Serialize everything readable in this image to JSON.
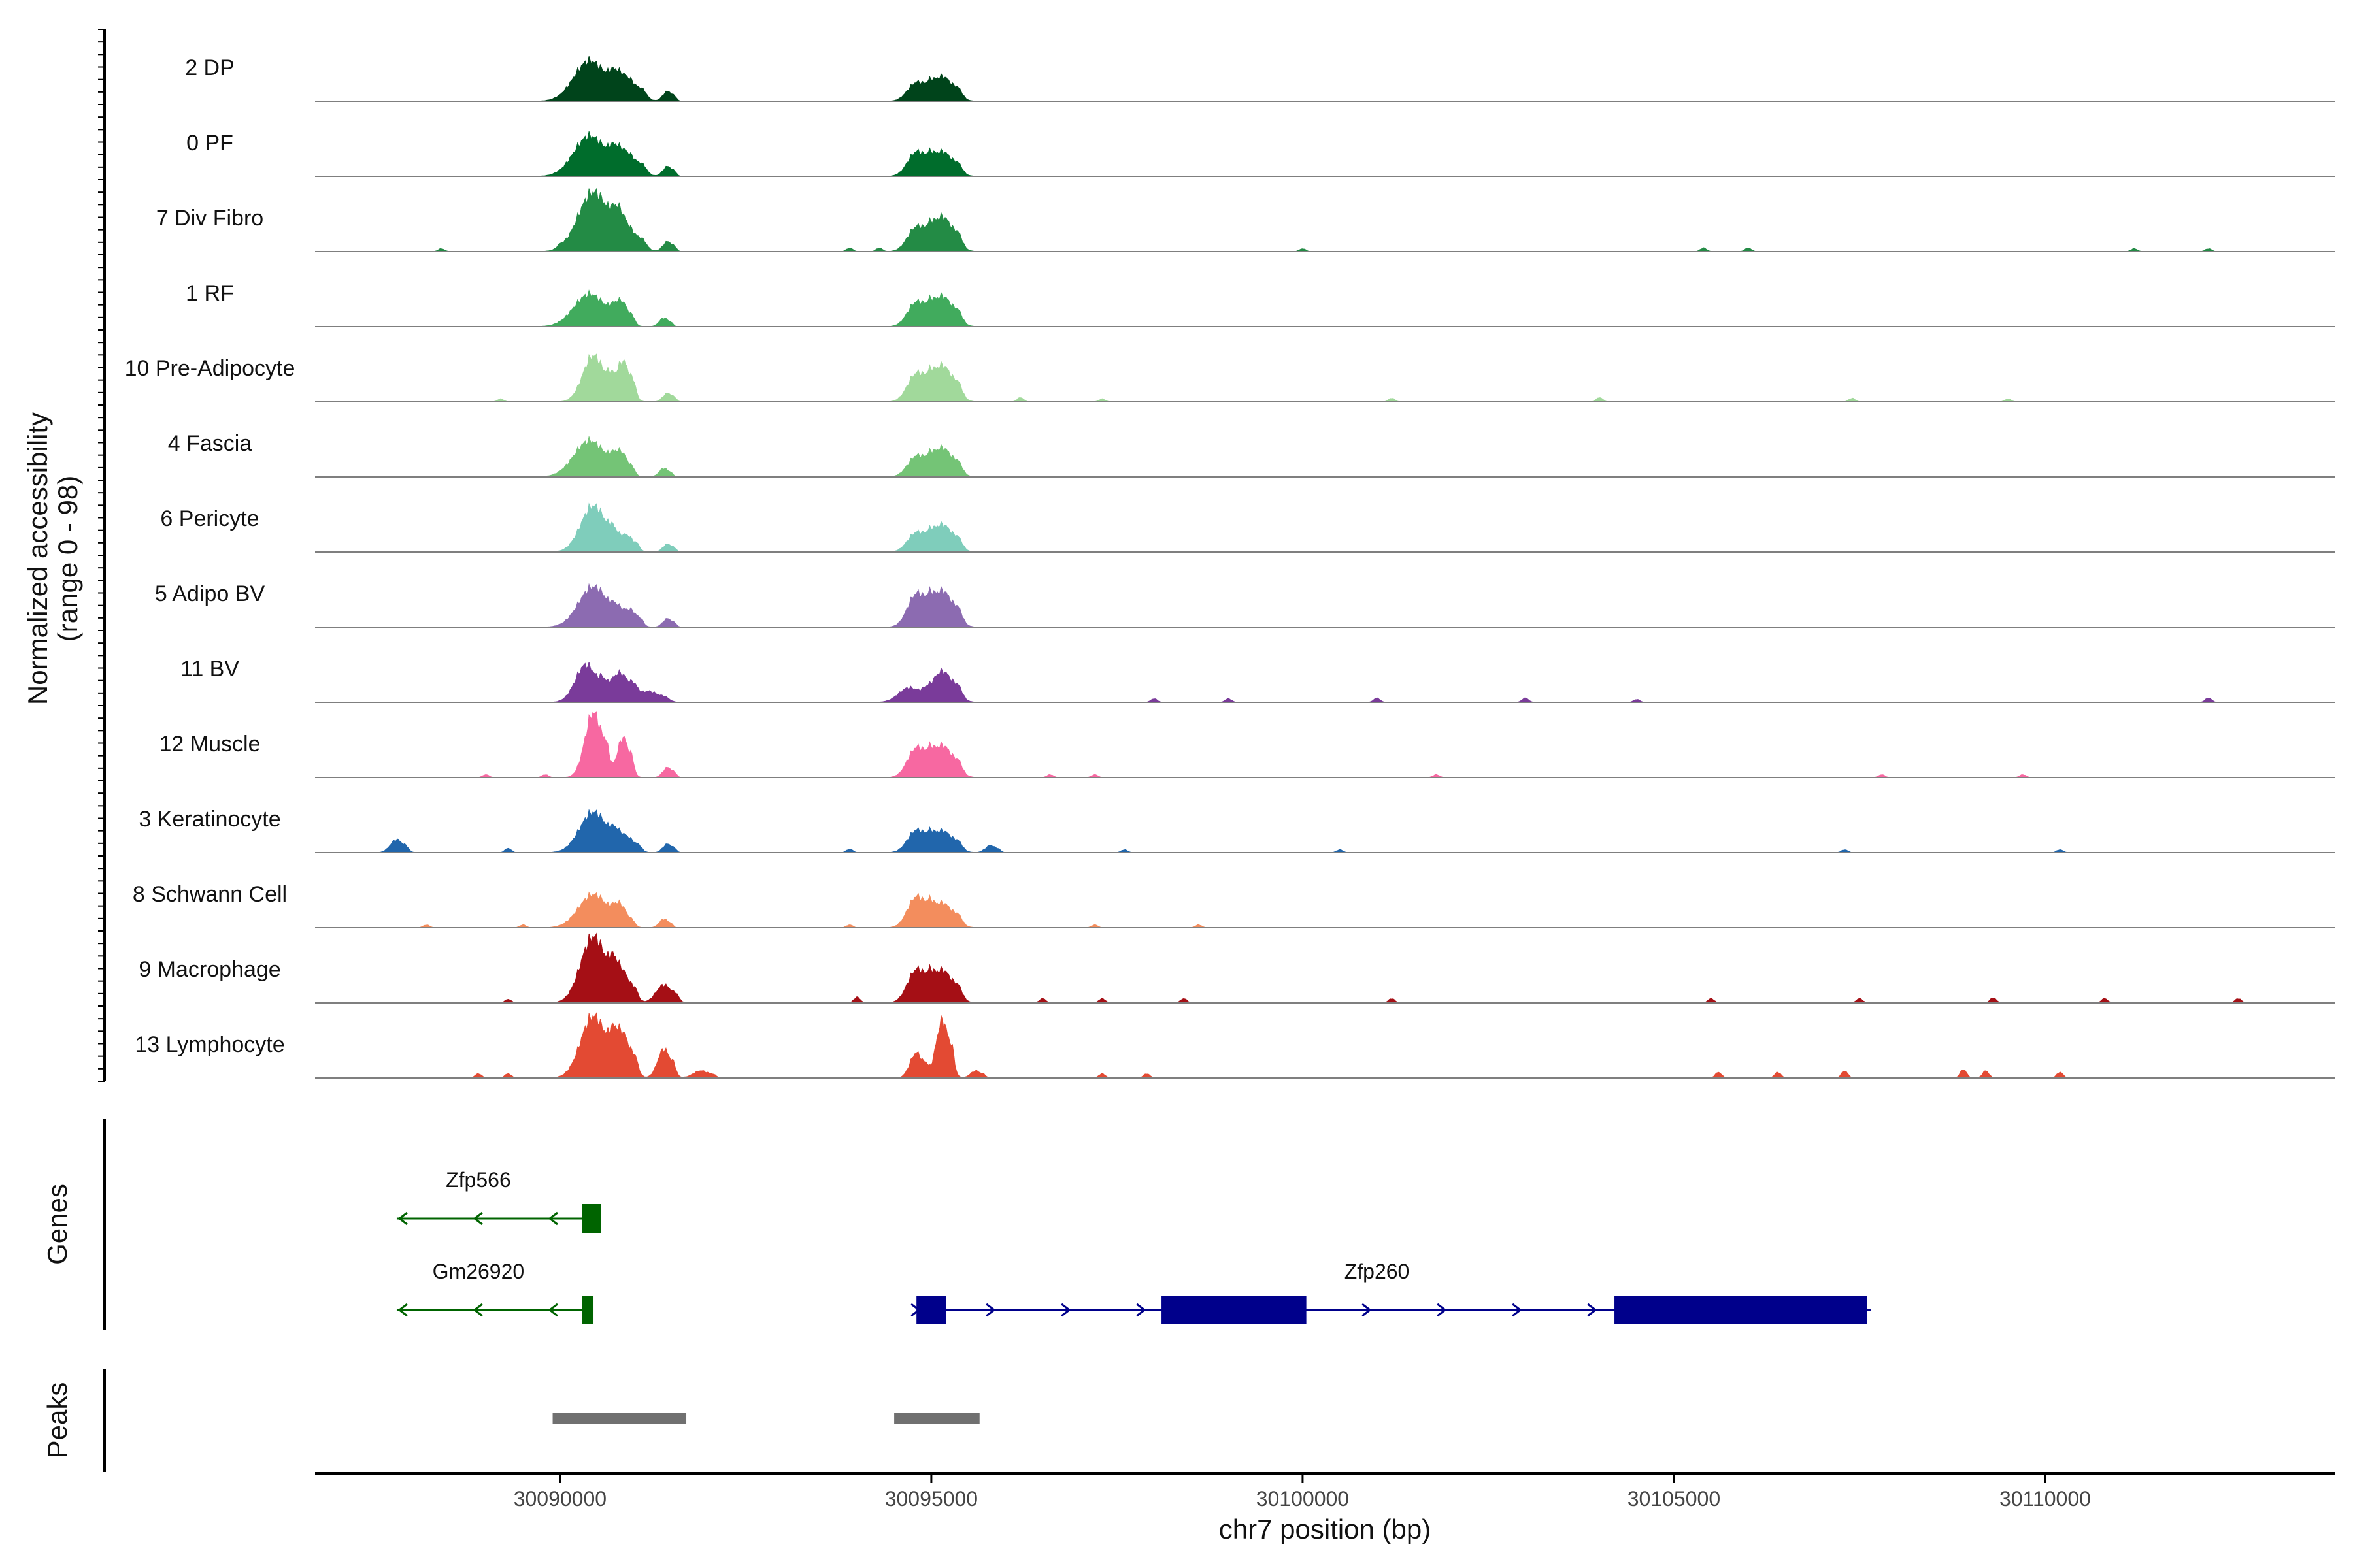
{
  "chart_data": {
    "type": "area",
    "title": "",
    "xlabel": "chr7 position (bp)",
    "ylabel": "Normalized accessibility",
    "ylabel_range": "(range 0 - 98)",
    "xlim": [
      30086700,
      30113900
    ],
    "ylim": [
      0,
      98
    ],
    "x_ticks": [
      30090000,
      30095000,
      30100000,
      30105000,
      30110000
    ],
    "x_tick_labels": [
      "30090000",
      "30095000",
      "30100000",
      "30105000",
      "30110000"
    ],
    "tracks": [
      {
        "name": "2 DP",
        "color": "#00441b",
        "peaks": [
          [
            30090400,
            56,
            300
          ],
          [
            30090900,
            30,
            200
          ],
          [
            30091450,
            14,
            90
          ],
          [
            30094800,
            25,
            170
          ],
          [
            30095150,
            34,
            200
          ]
        ],
        "noise": []
      },
      {
        "name": "0 PF",
        "color": "#006d2c",
        "peaks": [
          [
            30090400,
            56,
            300
          ],
          [
            30090900,
            30,
            200
          ],
          [
            30091450,
            14,
            90
          ],
          [
            30094800,
            33,
            170
          ],
          [
            30095150,
            34,
            200
          ]
        ],
        "noise": []
      },
      {
        "name": "7 Div Fibro",
        "color": "#238b45",
        "peaks": [
          [
            30090450,
            82,
            290
          ],
          [
            30090900,
            30,
            200
          ],
          [
            30091450,
            14,
            90
          ],
          [
            30094800,
            33,
            170
          ],
          [
            30095150,
            48,
            200
          ]
        ],
        "noise": [
          [
            30088400,
            4
          ],
          [
            30090000,
            4
          ],
          [
            30093900,
            5
          ],
          [
            30094300,
            5
          ],
          [
            30100000,
            4
          ],
          [
            30105400,
            5
          ],
          [
            30106000,
            5
          ],
          [
            30111200,
            4
          ],
          [
            30112200,
            4
          ]
        ]
      },
      {
        "name": "1 RF",
        "color": "#41ab5d",
        "peaks": [
          [
            30090400,
            45,
            300
          ],
          [
            30090850,
            26,
            120
          ],
          [
            30091400,
            12,
            90
          ],
          [
            30094800,
            33,
            170
          ],
          [
            30095150,
            42,
            200
          ]
        ],
        "noise": []
      },
      {
        "name": "10 Pre-Adipocyte",
        "color": "#a1d99b",
        "peaks": [
          [
            30090450,
            64,
            200
          ],
          [
            30090850,
            55,
            130
          ],
          [
            30091450,
            12,
            90
          ],
          [
            30094800,
            38,
            170
          ],
          [
            30095150,
            50,
            200
          ]
        ],
        "noise": [
          [
            30089200,
            4
          ],
          [
            30096200,
            6
          ],
          [
            30097300,
            4
          ],
          [
            30101200,
            5
          ],
          [
            30104000,
            6
          ],
          [
            30107400,
            5
          ],
          [
            30109500,
            4
          ]
        ]
      },
      {
        "name": "4 Fascia",
        "color": "#74c476",
        "peaks": [
          [
            30090400,
            50,
            300
          ],
          [
            30090850,
            24,
            120
          ],
          [
            30091400,
            12,
            90
          ],
          [
            30094800,
            28,
            170
          ],
          [
            30095150,
            40,
            200
          ]
        ],
        "noise": []
      },
      {
        "name": "6 Pericyte",
        "color": "#7fcdbb",
        "peaks": [
          [
            30090450,
            64,
            240
          ],
          [
            30090900,
            22,
            130
          ],
          [
            30091450,
            11,
            90
          ],
          [
            30094800,
            26,
            170
          ],
          [
            30095150,
            38,
            200
          ]
        ],
        "noise": []
      },
      {
        "name": "5 Adipo BV",
        "color": "#8c6bb1",
        "peaks": [
          [
            30090450,
            56,
            280
          ],
          [
            30090950,
            22,
            130
          ],
          [
            30091450,
            12,
            90
          ],
          [
            30094800,
            45,
            170
          ],
          [
            30095150,
            50,
            200
          ]
        ],
        "noise": []
      },
      {
        "name": "11 BV",
        "color": "#7a3b9a",
        "peaks": [
          [
            30090350,
            52,
            200
          ],
          [
            30090800,
            40,
            180
          ],
          [
            30091200,
            15,
            200
          ],
          [
            30094700,
            20,
            200
          ],
          [
            30095150,
            43,
            200
          ]
        ],
        "noise": [
          [
            30098000,
            5
          ],
          [
            30099000,
            5
          ],
          [
            30101000,
            6
          ],
          [
            30103000,
            6
          ],
          [
            30104500,
            4
          ],
          [
            30112200,
            6
          ]
        ]
      },
      {
        "name": "12 Muscle",
        "color": "#f768a1",
        "peaks": [
          [
            30090450,
            90,
            160
          ],
          [
            30090850,
            55,
            110
          ],
          [
            30091450,
            14,
            90
          ],
          [
            30094800,
            40,
            170
          ],
          [
            30095150,
            44,
            200
          ]
        ],
        "noise": [
          [
            30089000,
            4
          ],
          [
            30089800,
            4
          ],
          [
            30096600,
            4
          ],
          [
            30097200,
            4
          ],
          [
            30101800,
            4
          ],
          [
            30107800,
            4
          ],
          [
            30109700,
            4
          ]
        ]
      },
      {
        "name": "3 Keratinocyte",
        "color": "#2166ac",
        "peaks": [
          [
            30087800,
            18,
            120
          ],
          [
            30090450,
            56,
            260
          ],
          [
            30090900,
            20,
            150
          ],
          [
            30091450,
            12,
            90
          ],
          [
            30094800,
            30,
            170
          ],
          [
            30095150,
            30,
            200
          ],
          [
            30095800,
            10,
            100
          ]
        ],
        "noise": [
          [
            30089300,
            6
          ],
          [
            30093900,
            5
          ],
          [
            30097600,
            4
          ],
          [
            30100500,
            4
          ],
          [
            30107300,
            4
          ],
          [
            30110200,
            4
          ]
        ]
      },
      {
        "name": "8 Schwann Cell",
        "color": "#f38d5d",
        "peaks": [
          [
            30090450,
            46,
            280
          ],
          [
            30090850,
            18,
            120
          ],
          [
            30091400,
            12,
            90
          ],
          [
            30094800,
            42,
            170
          ],
          [
            30095150,
            34,
            200
          ]
        ],
        "noise": [
          [
            30088200,
            4
          ],
          [
            30089500,
            4
          ],
          [
            30093900,
            4
          ],
          [
            30097200,
            4
          ],
          [
            30098600,
            4
          ]
        ]
      },
      {
        "name": "9 Macrophage",
        "color": "#a50f15",
        "peaks": [
          [
            30090450,
            92,
            240
          ],
          [
            30090850,
            38,
            150
          ],
          [
            30091400,
            25,
            150
          ],
          [
            30094800,
            45,
            170
          ],
          [
            30095150,
            45,
            200
          ]
        ],
        "noise": [
          [
            30089300,
            5
          ],
          [
            30094000,
            8
          ],
          [
            30096500,
            6
          ],
          [
            30097300,
            6
          ],
          [
            30098400,
            6
          ],
          [
            30101200,
            6
          ],
          [
            30105500,
            6
          ],
          [
            30107500,
            6
          ],
          [
            30109300,
            7
          ],
          [
            30110800,
            6
          ],
          [
            30112600,
            6
          ]
        ]
      },
      {
        "name": "13 Lymphocyte",
        "color": "#e34a33",
        "peaks": [
          [
            30090450,
            86,
            240
          ],
          [
            30090850,
            56,
            150
          ],
          [
            30091400,
            40,
            120
          ],
          [
            30091900,
            10,
            150
          ],
          [
            30094800,
            35,
            120
          ],
          [
            30095150,
            80,
            120
          ],
          [
            30095600,
            10,
            100
          ]
        ],
        "noise": [
          [
            30088900,
            6
          ],
          [
            30089300,
            6
          ],
          [
            30097300,
            6
          ],
          [
            30097900,
            6
          ],
          [
            30105600,
            8
          ],
          [
            30106400,
            8
          ],
          [
            30107300,
            10
          ],
          [
            30108900,
            12
          ],
          [
            30109200,
            10
          ],
          [
            30110200,
            8
          ]
        ]
      }
    ],
    "genes": [
      {
        "name": "Zfp566",
        "strand": "-",
        "color": "#006400",
        "start": 30087800,
        "end": 30090550,
        "exons": [
          [
            30090300,
            30090550
          ]
        ],
        "row": 0,
        "label_x": 30088900
      },
      {
        "name": "Gm26920",
        "strand": "-",
        "color": "#006400",
        "start": 30087800,
        "end": 30090450,
        "exons": [
          [
            30090300,
            30090450
          ]
        ],
        "row": 1,
        "label_x": 30088900
      },
      {
        "name": "Zfp260",
        "strand": "+",
        "color": "#00008b",
        "start": 30094800,
        "end": 30107650,
        "exons": [
          [
            30094800,
            30095200
          ],
          [
            30098100,
            30100050
          ],
          [
            30104200,
            30107600
          ]
        ],
        "row": 1,
        "label_x": 30101000
      }
    ],
    "peaks": [
      [
        30089900,
        30091700
      ],
      [
        30094500,
        30095650
      ]
    ],
    "panel_labels": {
      "genes": "Genes",
      "peaks": "Peaks"
    },
    "colors": {
      "axis": "#000000",
      "baseline": "#7f7f7f",
      "peak_bar": "#707070",
      "tick_label": "#444444"
    }
  }
}
